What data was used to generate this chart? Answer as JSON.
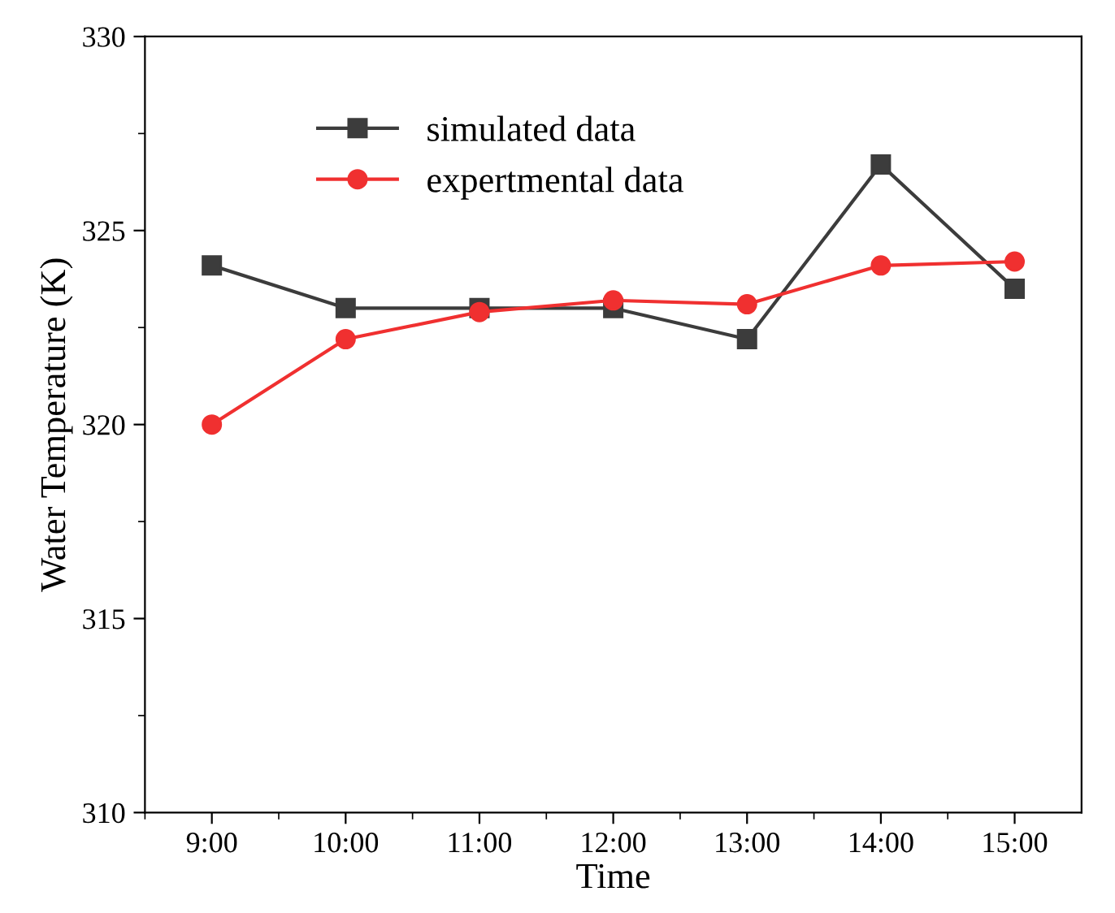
{
  "chart_data": {
    "type": "line",
    "xlabel": "Time",
    "ylabel": "Water Temperature (K)",
    "categories": [
      "9:00",
      "10:00",
      "11:00",
      "12:00",
      "13:00",
      "14:00",
      "15:00"
    ],
    "series": [
      {
        "name": "simulated data",
        "color": "#3c3c3c",
        "marker": "square",
        "values": [
          324.1,
          323.0,
          323.0,
          323.0,
          322.2,
          326.7,
          323.5
        ]
      },
      {
        "name": "expertmental data",
        "color": "#f03030",
        "marker": "circle",
        "values": [
          320.0,
          322.2,
          322.9,
          323.2,
          323.1,
          324.1,
          324.2
        ]
      }
    ],
    "ylim": [
      310,
      330
    ],
    "yticks": [
      310,
      315,
      320,
      325,
      330
    ],
    "grid": false,
    "legend": "top",
    "line_style": "solid"
  }
}
